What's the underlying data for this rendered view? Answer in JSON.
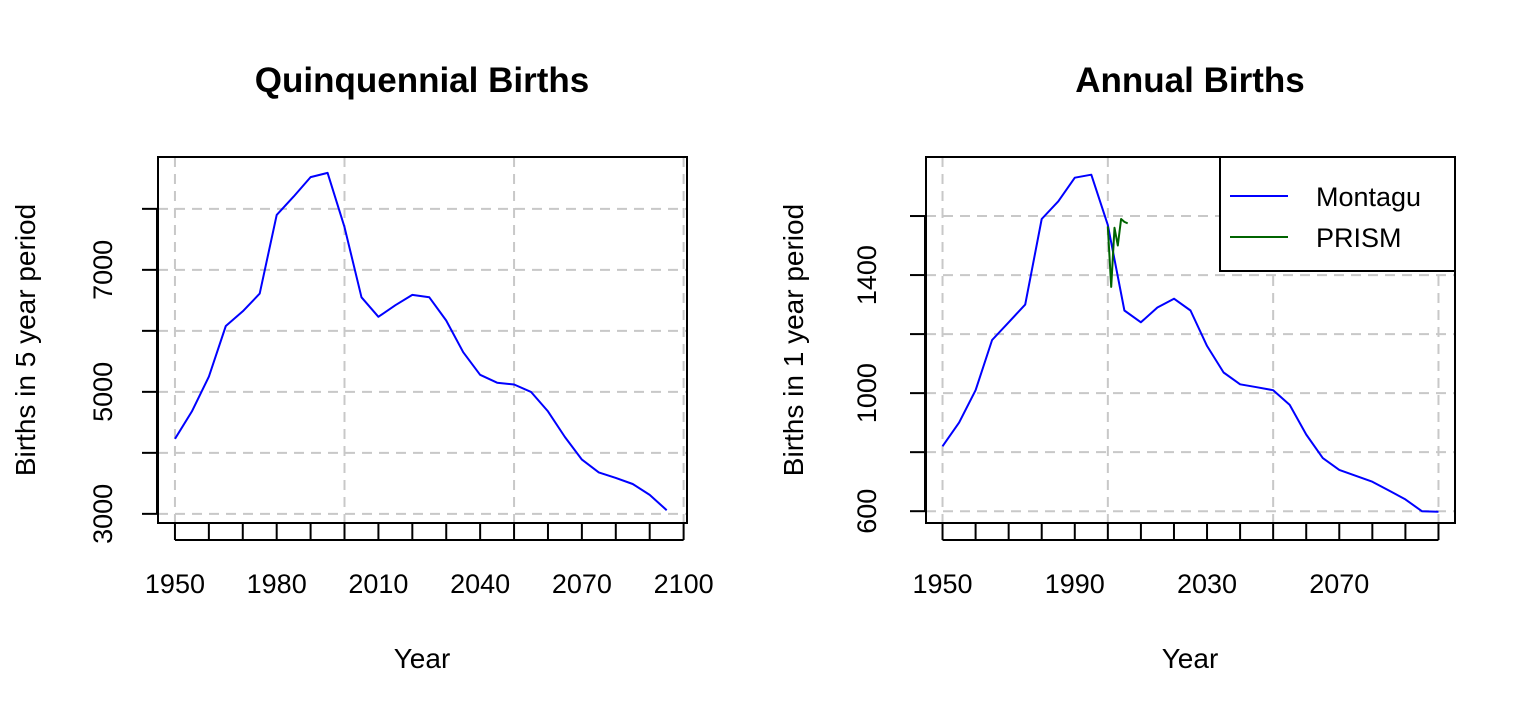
{
  "chart_data": [
    {
      "type": "line",
      "title": "Quinquennial Births",
      "xlabel": "Year",
      "ylabel": "Births in 5 year period",
      "xlim": [
        1945,
        2101
      ],
      "ylim": [
        2850,
        8850
      ],
      "x_ticks": [
        1950,
        1960,
        1970,
        1980,
        1990,
        2000,
        2010,
        2020,
        2030,
        2040,
        2050,
        2060,
        2070,
        2080,
        2090,
        2100
      ],
      "x_tick_labels": [
        "1950",
        "",
        "",
        "1980",
        "",
        "",
        "2010",
        "",
        "",
        "2040",
        "",
        "",
        "2070",
        "",
        "",
        "2100"
      ],
      "x_grid": [
        1950,
        2000,
        2050,
        2100
      ],
      "y_ticks": [
        3000,
        4000,
        5000,
        6000,
        7000,
        8000
      ],
      "y_tick_labels": [
        "3000",
        "",
        "5000",
        "",
        "7000",
        ""
      ],
      "y_grid": [
        3000,
        4000,
        5000,
        6000,
        7000,
        8000
      ],
      "grid": true,
      "legend": null,
      "series": [
        {
          "color": "#0000ff",
          "x": [
            1950,
            1955,
            1960,
            1965,
            1970,
            1975,
            1980,
            1985,
            1990,
            1995,
            2000,
            2005,
            2010,
            2015,
            2020,
            2025,
            2030,
            2035,
            2040,
            2045,
            2050,
            2055,
            2060,
            2065,
            2070,
            2075,
            2080,
            2085,
            2090,
            2095
          ],
          "values": [
            4230,
            4680,
            5250,
            6080,
            6320,
            6610,
            7900,
            8200,
            8520,
            8590,
            7700,
            6550,
            6230,
            6420,
            6590,
            6550,
            6170,
            5650,
            5280,
            5150,
            5120,
            5000,
            4680,
            4260,
            3890,
            3680,
            3590,
            3490,
            3310,
            3060
          ]
        }
      ]
    },
    {
      "type": "line",
      "title": "Annual Births",
      "xlabel": "Year",
      "ylabel": "Births in 1 year period",
      "xlim": [
        1945,
        2105
      ],
      "ylim": [
        560,
        1800
      ],
      "x_ticks": [
        1950,
        1960,
        1970,
        1980,
        1990,
        2000,
        2010,
        2020,
        2030,
        2040,
        2050,
        2060,
        2070,
        2080,
        2090,
        2100
      ],
      "x_tick_labels": [
        "1950",
        "",
        "",
        "",
        "1990",
        "",
        "",
        "",
        "2030",
        "",
        "",
        "",
        "2070",
        "",
        "",
        ""
      ],
      "x_grid": [
        1950,
        2000,
        2050,
        2100
      ],
      "y_ticks": [
        600,
        800,
        1000,
        1200,
        1400,
        1600
      ],
      "y_tick_labels": [
        "600",
        "",
        "1000",
        "",
        "1400",
        ""
      ],
      "y_grid": [
        600,
        800,
        1000,
        1200,
        1400,
        1600
      ],
      "grid": true,
      "legend": "top-right",
      "series": [
        {
          "name": "Montagu",
          "color": "#0000ff",
          "x": [
            1950,
            1955,
            1960,
            1965,
            1970,
            1975,
            1980,
            1985,
            1990,
            1995,
            2000,
            2005,
            2010,
            2015,
            2020,
            2025,
            2030,
            2035,
            2040,
            2045,
            2050,
            2055,
            2060,
            2065,
            2070,
            2075,
            2080,
            2085,
            2090,
            2095,
            2100
          ],
          "values": [
            820,
            900,
            1010,
            1180,
            1240,
            1300,
            1590,
            1650,
            1730,
            1740,
            1570,
            1280,
            1240,
            1290,
            1320,
            1280,
            1160,
            1070,
            1030,
            1020,
            1010,
            960,
            860,
            780,
            740,
            720,
            700,
            670,
            640,
            600,
            598
          ]
        },
        {
          "name": "PRISM",
          "color": "#006400",
          "x": [
            2000,
            2001,
            2002,
            2003,
            2004,
            2005,
            2006
          ],
          "values": [
            1565,
            1360,
            1560,
            1500,
            1590,
            1580,
            1575
          ]
        }
      ]
    }
  ]
}
